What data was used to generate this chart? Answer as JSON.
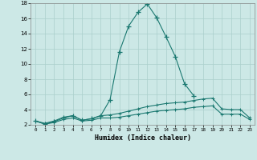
{
  "x": [
    0,
    1,
    2,
    3,
    4,
    5,
    6,
    7,
    8,
    9,
    10,
    11,
    12,
    13,
    14,
    15,
    16,
    17,
    18,
    19,
    20,
    21,
    22,
    23
  ],
  "y_main": [
    2.5,
    2.1,
    2.4,
    2.9,
    3.2,
    2.6,
    2.8,
    3.2,
    5.3,
    11.6,
    15.0,
    16.8,
    17.9,
    16.1,
    13.6,
    11.0,
    7.4,
    5.8,
    null,
    null,
    null,
    null,
    null,
    null
  ],
  "y_upper": [
    2.5,
    2.2,
    2.5,
    3.0,
    3.2,
    2.6,
    2.8,
    3.2,
    3.3,
    3.5,
    3.8,
    4.1,
    4.4,
    4.6,
    4.8,
    4.9,
    5.0,
    5.2,
    5.4,
    5.5,
    4.1,
    4.0,
    4.0,
    2.9
  ],
  "y_lower": [
    2.5,
    2.1,
    2.3,
    2.7,
    2.9,
    2.5,
    2.6,
    2.9,
    2.9,
    3.0,
    3.2,
    3.4,
    3.6,
    3.8,
    3.9,
    4.0,
    4.1,
    4.3,
    4.4,
    4.5,
    3.4,
    3.4,
    3.4,
    2.7
  ],
  "bg_color": "#cce8e6",
  "grid_color": "#aacfcc",
  "line_color": "#1a7870",
  "xlabel": "Humidex (Indice chaleur)",
  "ylim": [
    2,
    18
  ],
  "xlim": [
    -0.5,
    23.5
  ],
  "yticks": [
    2,
    4,
    6,
    8,
    10,
    12,
    14,
    16,
    18
  ],
  "xticks": [
    0,
    1,
    2,
    3,
    4,
    5,
    6,
    7,
    8,
    9,
    10,
    11,
    12,
    13,
    14,
    15,
    16,
    17,
    18,
    19,
    20,
    21,
    22,
    23
  ]
}
